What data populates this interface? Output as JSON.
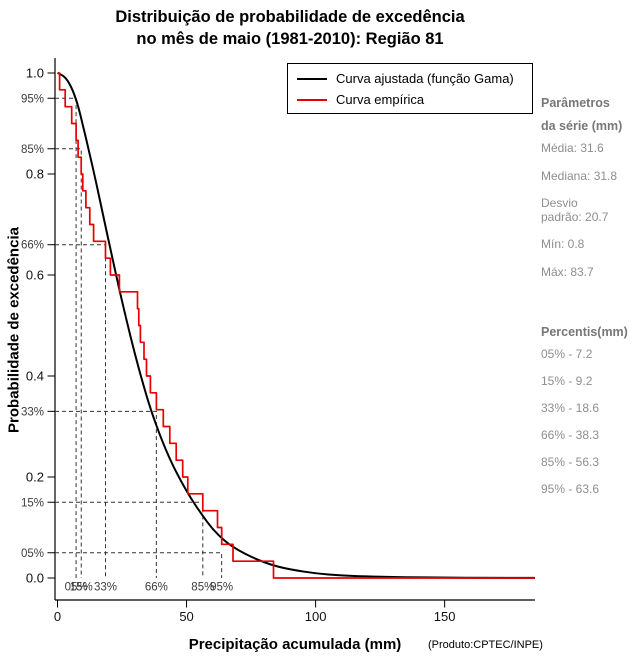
{
  "title": {
    "line1": "Distribuição de probabilidade de excedência",
    "line2": "no mês de maio (1981-2010): Região 81"
  },
  "axes": {
    "x_label": "Precipitação acumulada (mm)",
    "x_sublabel": "(Produto:CPTEC/INPE)",
    "y_label": "Probabilidade de excedência",
    "x_ticks": [
      0,
      50,
      100,
      150
    ],
    "y_ticks": [
      "0.0",
      "0.2",
      "0.4",
      "0.6",
      "0.8",
      "1.0"
    ],
    "x_range": [
      0,
      185
    ],
    "y_range": [
      0,
      1
    ]
  },
  "legend": [
    {
      "label": "Curva ajustada (função Gama)",
      "color": "#000000"
    },
    {
      "label": "Curva empírica",
      "color": "#e60000"
    }
  ],
  "chart_data": {
    "type": "line",
    "title": "Distribuição de probabilidade de excedência no mês de maio (1981-2010): Região 81",
    "xlabel": "Precipitação acumulada (mm)",
    "ylabel": "Probabilidade de excedência",
    "xlim": [
      0,
      185
    ],
    "ylim": [
      0,
      1
    ],
    "grid": false,
    "legend_position": "top-right",
    "series": [
      {
        "name": "Curva ajustada (função Gama)",
        "color": "#000000",
        "style": "smooth",
        "x": [
          0,
          2,
          4,
          6,
          8,
          10,
          12,
          15,
          18,
          21,
          24,
          27,
          30,
          33,
          36,
          40,
          44,
          48,
          52,
          56,
          60,
          65,
          70,
          75,
          80,
          85,
          90,
          100,
          110,
          120,
          135,
          150,
          165,
          185
        ],
        "y": [
          1.0,
          0.996,
          0.985,
          0.965,
          0.935,
          0.893,
          0.85,
          0.783,
          0.71,
          0.64,
          0.57,
          0.505,
          0.443,
          0.387,
          0.335,
          0.278,
          0.23,
          0.19,
          0.155,
          0.125,
          0.097,
          0.072,
          0.055,
          0.042,
          0.031,
          0.023,
          0.017,
          0.009,
          0.005,
          0.003,
          0.0015,
          0.0008,
          0.0004,
          0.0002
        ]
      },
      {
        "name": "Curva empírica",
        "color": "#e60000",
        "style": "step-survival",
        "sorted_values": [
          0.8,
          3.0,
          5.5,
          7.2,
          8.0,
          9.2,
          9.8,
          11.0,
          12.5,
          14.0,
          18.6,
          20.5,
          24.0,
          31.0,
          31.5,
          32.1,
          33.5,
          34.5,
          36.0,
          38.3,
          41.0,
          43.5,
          46.0,
          48.5,
          50.5,
          56.3,
          62.0,
          63.6,
          68.0,
          83.7
        ]
      }
    ],
    "percentile_markers": [
      {
        "pct_label": "05%",
        "value_mm": 7.2,
        "exceed_prob": 0.95,
        "exceed_label": "95%"
      },
      {
        "pct_label": "15%",
        "value_mm": 9.2,
        "exceed_prob": 0.85,
        "exceed_label": "85%"
      },
      {
        "pct_label": "33%",
        "value_mm": 18.6,
        "exceed_prob": 0.66,
        "exceed_label": "66%"
      },
      {
        "pct_label": "66%",
        "value_mm": 38.3,
        "exceed_prob": 0.33,
        "exceed_label": "33%"
      },
      {
        "pct_label": "85%",
        "value_mm": 56.3,
        "exceed_prob": 0.15,
        "exceed_label": "15%"
      },
      {
        "pct_label": "95%",
        "value_mm": 63.6,
        "exceed_prob": 0.05,
        "exceed_label": "05%"
      }
    ]
  },
  "side_panel": {
    "params_header_line1": "Parâmetros",
    "params_header_line2": "da série (mm)",
    "stats": [
      "Média: 31.6",
      "Mediana: 31.8",
      "Desvio\npadrão: 20.7",
      "Mín: 0.8",
      "Máx: 83.7"
    ],
    "percentiles_header": "Percentis(mm)",
    "percentiles": [
      "05% - 7.2",
      "15% - 9.2",
      "33% - 18.6",
      "66% - 38.3",
      "85% - 56.3",
      "95% - 63.6"
    ]
  }
}
